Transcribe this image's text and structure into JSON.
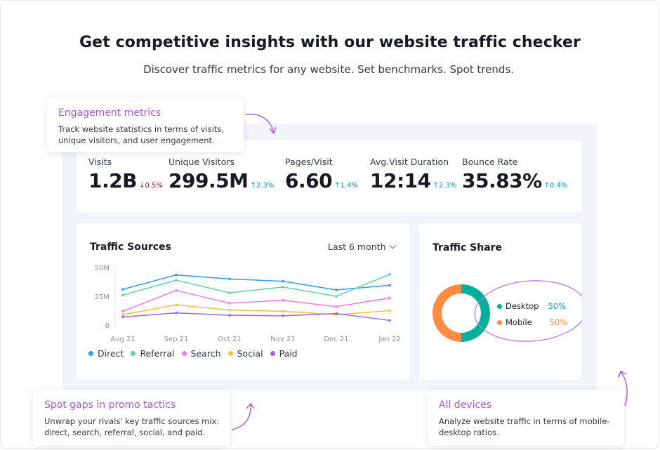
{
  "hero": {
    "title": "Get competitive insights with our website traffic checker",
    "subtitle": "Discover traffic metrics for any website. Set benchmarks. Spot trends."
  },
  "metrics": [
    {
      "label": "Visits",
      "value": "1.2B",
      "delta": "0.5%",
      "direction": "down"
    },
    {
      "label": "Unique Visitors",
      "value": "299.5M",
      "delta": "2.3%",
      "direction": "up"
    },
    {
      "label": "Pages/Visit",
      "value": "6.60",
      "delta": "1.4%",
      "direction": "up"
    },
    {
      "label": "Avg.Visit Duration",
      "value": "12:14",
      "delta": "2.3%",
      "direction": "up"
    },
    {
      "label": "Bounce Rate",
      "value": "35.83%",
      "delta": "0.4%",
      "direction": "up"
    }
  ],
  "traffic_sources": {
    "title": "Traffic Sources",
    "period": "Last 6 month"
  },
  "traffic_share": {
    "title": "Traffic Share",
    "items": [
      {
        "name": "Desktop",
        "value": "50%",
        "color": "#00b09a"
      },
      {
        "name": "Mobile",
        "value": "50%",
        "color": "#ff8c41"
      }
    ]
  },
  "tooltips": {
    "engagement": {
      "title": "Engagement metrics",
      "text": "Track website statistics in terms of visits, unique visitors, and user engagement."
    },
    "promo": {
      "title": "Spot gaps in promo tactics",
      "text": "Unwrap your rivals' key traffic sources mix: direct, search, referral, social, and paid."
    },
    "devices": {
      "title": "All devices",
      "text": "Analyze website traffic in terms of mobile-desktop ratios."
    }
  },
  "colors": {
    "accent_purple": "#a45ad9",
    "up": "#009f81",
    "down": "#d1002f"
  },
  "chart_data": {
    "type": "line",
    "title": "Traffic Sources",
    "x": [
      "Aug 21",
      "Sep 21",
      "Oct 21",
      "Nov 21",
      "Dec 21",
      "Jan 22"
    ],
    "y_ticks": [
      "50M",
      "25M",
      "0"
    ],
    "ylim": [
      0,
      50
    ],
    "grid": true,
    "legend_position": "bottom",
    "series": [
      {
        "name": "Direct",
        "color": "#2e9ce6",
        "values": [
          31,
          43.5,
          40,
          38,
          30.5,
          34.5
        ]
      },
      {
        "name": "Referral",
        "color": "#5fd3a5",
        "values": [
          26,
          39,
          28,
          33,
          25,
          44
        ]
      },
      {
        "name": "Search",
        "color": "#f07be8",
        "values": [
          12,
          30,
          19,
          21.5,
          16,
          23.5
        ]
      },
      {
        "name": "Social",
        "color": "#f5bf3d",
        "values": [
          9,
          17.5,
          13,
          12,
          9,
          12.5
        ]
      },
      {
        "name": "Paid",
        "color": "#9a67e3",
        "values": [
          7,
          10.5,
          8.5,
          8,
          10,
          4
        ]
      }
    ]
  }
}
